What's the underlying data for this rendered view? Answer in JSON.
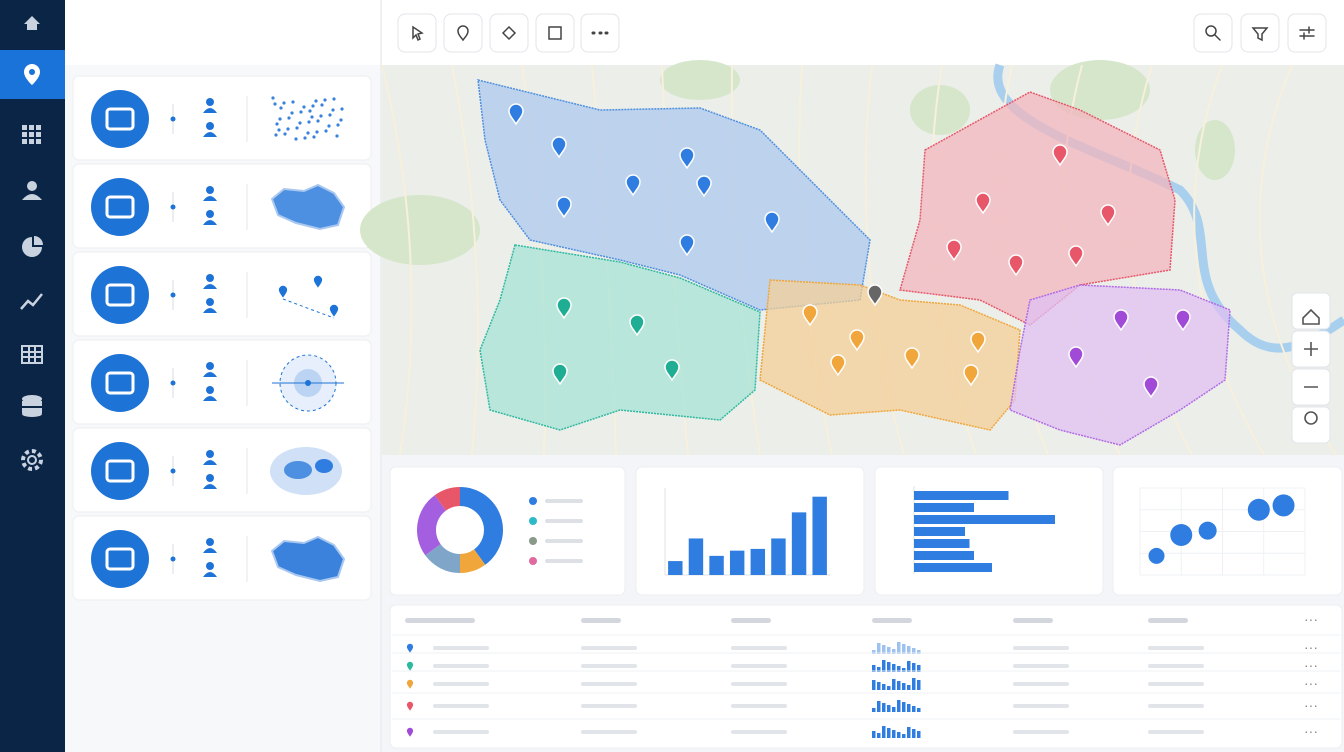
{
  "chart_data": [
    {
      "type": "pie",
      "donut": true,
      "values": [
        40,
        10,
        15,
        25,
        10
      ],
      "colors": [
        "#2f7de1",
        "#f0a63a",
        "#7fa6c8",
        "#a45ee0",
        "#e8566a"
      ]
    },
    {
      "type": "bar",
      "values": [
        16,
        42,
        22,
        28,
        30,
        42,
        72,
        90
      ],
      "ylim": [
        0,
        100
      ],
      "color": "#2f7de1",
      "grid": true
    },
    {
      "type": "hbar",
      "values": [
        63,
        40,
        94,
        34,
        37,
        40,
        52
      ],
      "xlim": [
        0,
        100
      ],
      "color": "#2f7de1"
    },
    {
      "type": "scatter",
      "x": [
        10,
        25,
        41,
        72,
        87
      ],
      "y": [
        22,
        46,
        51,
        75,
        80
      ],
      "size": [
        8,
        11,
        9,
        11,
        11
      ],
      "xlim": [
        0,
        100
      ],
      "ylim": [
        0,
        100
      ],
      "color": "#2f7de1",
      "grid": true
    }
  ]
}
